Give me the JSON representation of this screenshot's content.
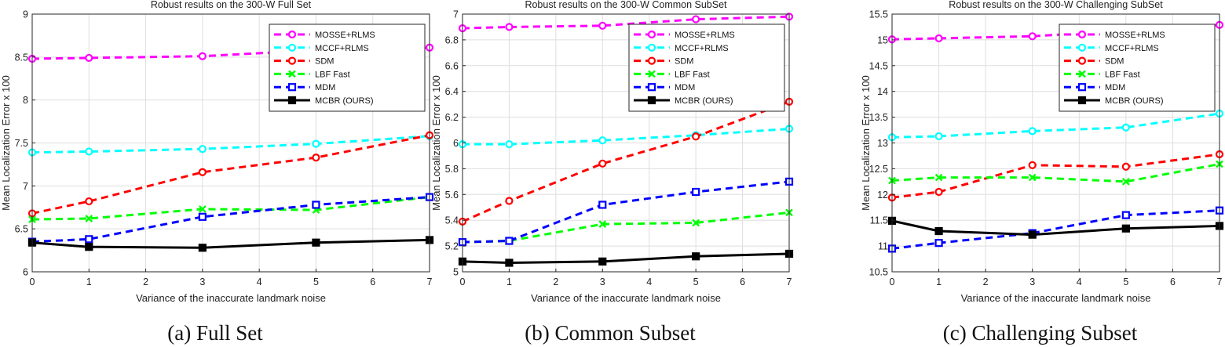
{
  "chart_data": [
    {
      "type": "line",
      "title": "Robust results on the 300-W Full Set",
      "xlabel": "Variance of the inaccurate landmark noise",
      "ylabel": "Mean Localization Error x 100",
      "caption": "(a) Full Set",
      "x": [
        0,
        1,
        3,
        5,
        7
      ],
      "xlim": [
        0,
        7
      ],
      "ylim": [
        6,
        9
      ],
      "xticks": [
        0,
        1,
        2,
        3,
        4,
        5,
        6,
        7
      ],
      "yticks": [
        6,
        6.5,
        7,
        7.5,
        8,
        8.5,
        9
      ],
      "ytick_labels": [
        "6",
        "6.5",
        "7",
        "7.5",
        "8",
        "8.5",
        "9"
      ],
      "grid": true,
      "legend_position": "top-right",
      "series": [
        {
          "name": "MOSSE+RLMS",
          "color": "#ff00ff",
          "marker": "circle",
          "dash": "dashed",
          "values": [
            8.48,
            8.49,
            8.51,
            8.58,
            8.61
          ]
        },
        {
          "name": "MCCF+RLMS",
          "color": "#00ffff",
          "marker": "circle",
          "dash": "dashed",
          "values": [
            7.39,
            7.4,
            7.43,
            7.49,
            7.58
          ]
        },
        {
          "name": "SDM",
          "color": "#ff0000",
          "marker": "circle",
          "dash": "dashed",
          "values": [
            6.68,
            6.82,
            7.16,
            7.33,
            7.59
          ]
        },
        {
          "name": "LBF Fast",
          "color": "#00ff00",
          "marker": "x",
          "dash": "dashed",
          "values": [
            6.61,
            6.62,
            6.73,
            6.72,
            6.87
          ]
        },
        {
          "name": "MDM",
          "color": "#0000ff",
          "marker": "square",
          "dash": "dashed",
          "values": [
            6.35,
            6.38,
            6.64,
            6.78,
            6.87
          ]
        },
        {
          "name": "MCBR (OURS)",
          "color": "#000000",
          "marker": "square",
          "dash": "solid",
          "values": [
            6.34,
            6.29,
            6.28,
            6.34,
            6.37
          ]
        }
      ]
    },
    {
      "type": "line",
      "title": "Robust results on the 300-W Common SubSet",
      "xlabel": "Variance of the inaccurate landmark noise",
      "ylabel": "Mean Localization Error x 100",
      "caption": "(b) Common Subset",
      "x": [
        0,
        1,
        3,
        5,
        7
      ],
      "xlim": [
        0,
        7
      ],
      "ylim": [
        5,
        7
      ],
      "xticks": [
        0,
        1,
        2,
        3,
        4,
        5,
        6,
        7
      ],
      "yticks": [
        5,
        5.2,
        5.4,
        5.6,
        5.8,
        6,
        6.2,
        6.4,
        6.6,
        6.8,
        7
      ],
      "ytick_labels": [
        "5",
        "5.2",
        "5.4",
        "5.6",
        "5.8",
        "6",
        "6.2",
        "6.4",
        "6.6",
        "6.8",
        "7"
      ],
      "grid": true,
      "legend_position": "top-right",
      "series": [
        {
          "name": "MOSSE+RLMS",
          "color": "#ff00ff",
          "marker": "circle",
          "dash": "dashed",
          "values": [
            6.89,
            6.9,
            6.91,
            6.96,
            6.98
          ]
        },
        {
          "name": "MCCF+RLMS",
          "color": "#00ffff",
          "marker": "circle",
          "dash": "dashed",
          "values": [
            5.99,
            5.99,
            6.02,
            6.06,
            6.11
          ]
        },
        {
          "name": "SDM",
          "color": "#ff0000",
          "marker": "circle",
          "dash": "dashed",
          "values": [
            5.39,
            5.55,
            5.84,
            6.05,
            6.32
          ]
        },
        {
          "name": "LBF Fast",
          "color": "#00ff00",
          "marker": "x",
          "dash": "dashed",
          "values": [
            5.23,
            5.24,
            5.37,
            5.38,
            5.46
          ]
        },
        {
          "name": "MDM",
          "color": "#0000ff",
          "marker": "square",
          "dash": "dashed",
          "values": [
            5.23,
            5.24,
            5.52,
            5.62,
            5.7
          ]
        },
        {
          "name": "MCBR (OURS)",
          "color": "#000000",
          "marker": "square",
          "dash": "solid",
          "values": [
            5.08,
            5.07,
            5.08,
            5.12,
            5.14
          ]
        }
      ]
    },
    {
      "type": "line",
      "title": "Robust results on the 300-W Challenging SubSet",
      "xlabel": "Variance of the inaccurate landmark noise",
      "ylabel": "Mean Localization Error x 100",
      "caption": "(c) Challenging Subset",
      "x": [
        0,
        1,
        3,
        5,
        7
      ],
      "xlim": [
        0,
        7
      ],
      "ylim": [
        10.5,
        15.5
      ],
      "xticks": [
        0,
        1,
        2,
        3,
        4,
        5,
        6,
        7
      ],
      "yticks": [
        10.5,
        11,
        11.5,
        12,
        12.5,
        13,
        13.5,
        14,
        14.5,
        15,
        15.5
      ],
      "ytick_labels": [
        "10.5",
        "11",
        "11.5",
        "12",
        "12.5",
        "13",
        "13.5",
        "14",
        "14.5",
        "15",
        "15.5"
      ],
      "grid": true,
      "legend_position": "top-right",
      "series": [
        {
          "name": "MOSSE+RLMS",
          "color": "#ff00ff",
          "marker": "circle",
          "dash": "dashed",
          "values": [
            15.01,
            15.03,
            15.07,
            15.18,
            15.29
          ]
        },
        {
          "name": "MCCF+RLMS",
          "color": "#00ffff",
          "marker": "circle",
          "dash": "dashed",
          "values": [
            13.11,
            13.13,
            13.23,
            13.3,
            13.57
          ]
        },
        {
          "name": "SDM",
          "color": "#ff0000",
          "marker": "circle",
          "dash": "dashed",
          "values": [
            11.94,
            12.05,
            12.57,
            12.54,
            12.78
          ]
        },
        {
          "name": "LBF Fast",
          "color": "#00ff00",
          "marker": "x",
          "dash": "dashed",
          "values": [
            12.27,
            12.33,
            12.33,
            12.25,
            12.59
          ]
        },
        {
          "name": "MDM",
          "color": "#0000ff",
          "marker": "square",
          "dash": "dashed",
          "values": [
            10.95,
            11.06,
            11.25,
            11.6,
            11.69
          ]
        },
        {
          "name": "MCBR (OURS)",
          "color": "#000000",
          "marker": "square",
          "dash": "solid",
          "values": [
            11.49,
            11.29,
            11.22,
            11.34,
            11.39
          ]
        }
      ]
    }
  ]
}
